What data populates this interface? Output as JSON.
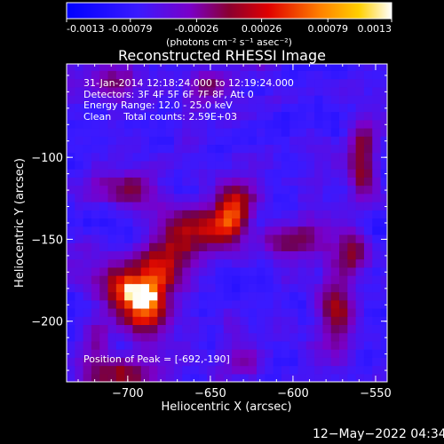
{
  "colorbar": {
    "ticks": [
      "-0.0013",
      "-0.00079",
      "-0.00026",
      "0.00026",
      "0.00079",
      "0.0013"
    ],
    "unit_label": "(photons cm⁻² s⁻¹ asec⁻²)",
    "range": [
      -0.0013,
      0.0013
    ]
  },
  "chart_data": {
    "type": "heatmap",
    "title": "Reconstructed RHESSI Image",
    "xlabel": "Heliocentric X (arcsec)",
    "ylabel": "Heliocentric Y (arcsec)",
    "xlim": [
      -737,
      -543
    ],
    "ylim": [
      -237,
      -43
    ],
    "x_ticks": [
      -700,
      -650,
      -600,
      -550
    ],
    "y_ticks": [
      -100,
      -150,
      -200
    ],
    "x_tick_labels": [
      "−700",
      "−650",
      "−600",
      "−550"
    ],
    "y_tick_labels": [
      "−100",
      "−150",
      "−200"
    ],
    "annotations": [
      "31-Jan-2014 12:18:24.000 to 12:19:24.000",
      "Detectors: 3F 4F 5F 6F 7F 8F, Att 0",
      "Energy Range: 12.0 - 25.0 keV",
      "Clean    Total counts: 2.59E+03"
    ],
    "peak_label": "Position of Peak = [-692,-190]",
    "peak": [
      -692,
      -190
    ],
    "colormap": "rhessi (blue-purple-red-orange-yellow-white)",
    "sources": [
      {
        "x": -690,
        "y": -187,
        "amp": 1.0,
        "sx": 11,
        "sy": 13
      },
      {
        "x": -706,
        "y": -178,
        "amp": 0.55,
        "sx": 9,
        "sy": 9
      },
      {
        "x": -676,
        "y": -163,
        "amp": 0.6,
        "sx": 10,
        "sy": 10
      },
      {
        "x": -663,
        "y": -143,
        "amp": 0.6,
        "sx": 12,
        "sy": 10
      },
      {
        "x": -640,
        "y": -140,
        "amp": 0.7,
        "sx": 10,
        "sy": 10
      },
      {
        "x": -636,
        "y": -125,
        "amp": 0.5,
        "sx": 8,
        "sy": 8
      },
      {
        "x": -598,
        "y": -150,
        "amp": 0.45,
        "sx": 12,
        "sy": 7
      },
      {
        "x": -573,
        "y": -190,
        "amp": 0.55,
        "sx": 7,
        "sy": 18
      },
      {
        "x": -558,
        "y": -105,
        "amp": 0.6,
        "sx": 6,
        "sy": 16
      },
      {
        "x": -563,
        "y": -158,
        "amp": 0.45,
        "sx": 6,
        "sy": 9
      },
      {
        "x": -704,
        "y": -232,
        "amp": 0.5,
        "sx": 16,
        "sy": 8
      },
      {
        "x": -700,
        "y": -120,
        "amp": 0.45,
        "sx": 12,
        "sy": 8
      },
      {
        "x": -710,
        "y": -56,
        "amp": 0.35,
        "sx": 12,
        "sy": 7
      },
      {
        "x": -650,
        "y": -55,
        "amp": 0.35,
        "sx": 10,
        "sy": 7
      },
      {
        "x": -630,
        "y": -225,
        "amp": 0.35,
        "sx": 8,
        "sy": 7
      },
      {
        "x": -718,
        "y": -210,
        "amp": 0.3,
        "sx": 6,
        "sy": 8
      }
    ]
  },
  "timestamp": "12−May−2022 04:34"
}
